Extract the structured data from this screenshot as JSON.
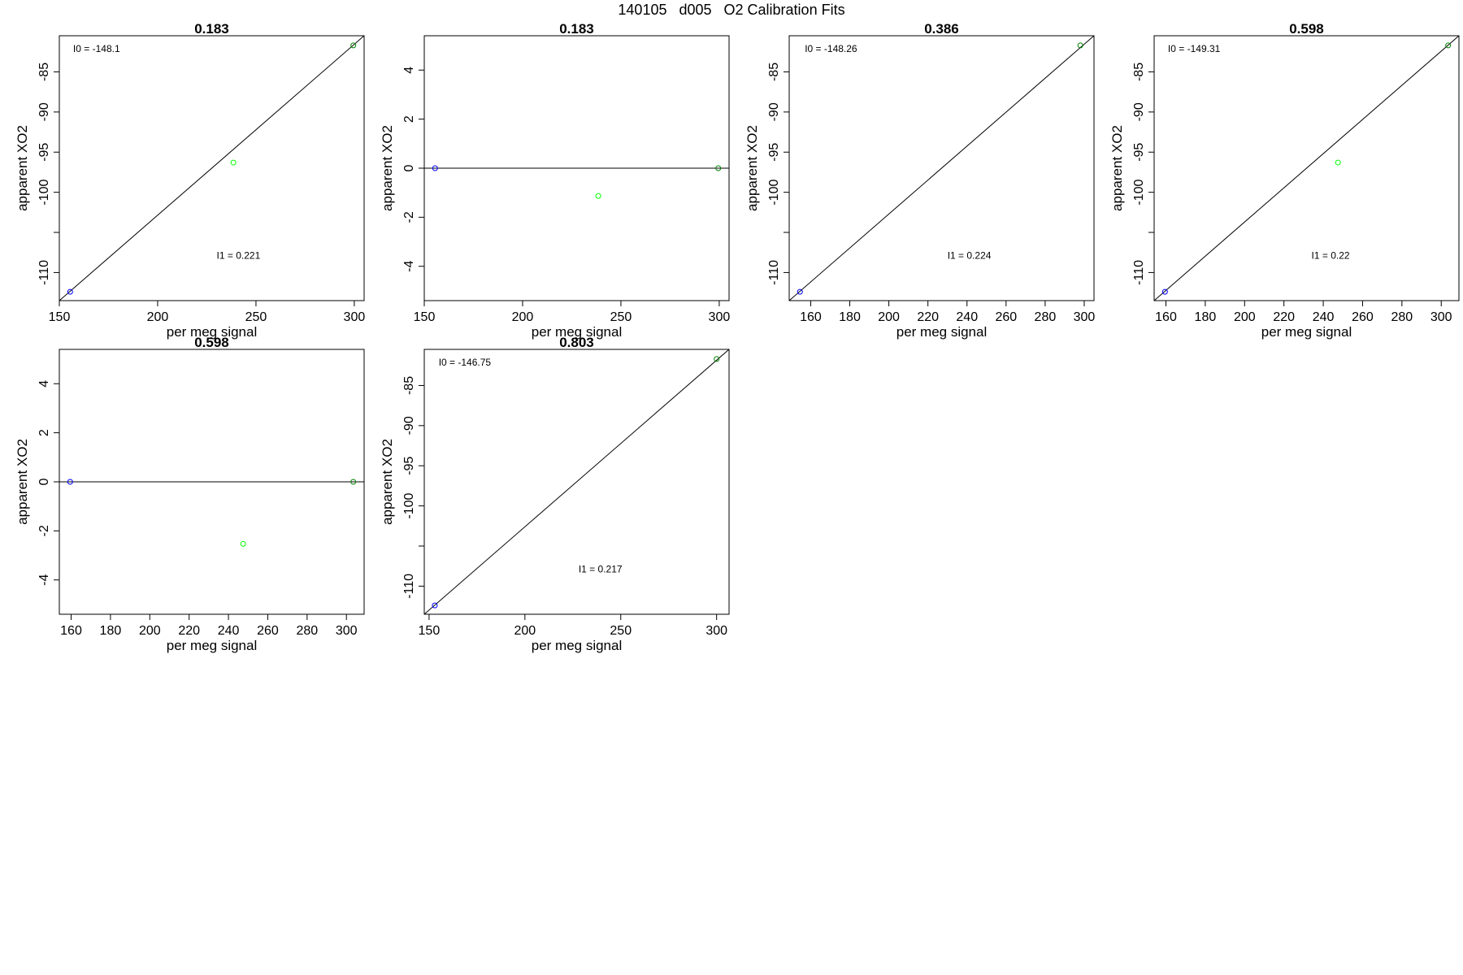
{
  "page": {
    "title": "140105   d005   O2 Calibration Fits"
  },
  "chart_data": [
    {
      "type": "scatter",
      "title": "0.183",
      "xlabel": "per meg signal",
      "ylabel": "apparent XO2",
      "xlim": [
        150,
        305
      ],
      "ylim": [
        -113.5,
        -80.5
      ],
      "xticks": [
        150,
        200,
        250,
        300
      ],
      "xtick_labels": [
        "150",
        "200",
        "250",
        "300"
      ],
      "yticks": [
        -85,
        -90,
        -95,
        -100,
        -105,
        -110
      ],
      "ytick_labels": [
        "-85",
        "-90",
        "-95",
        "-100",
        "",
        "-110"
      ],
      "points": [
        {
          "x": 155.5,
          "y": -112.4,
          "color": "#0000ff"
        },
        {
          "x": 238.5,
          "y": -96.3,
          "color": "#00ff00"
        },
        {
          "x": 299.5,
          "y": -81.7,
          "color": "#008000"
        }
      ],
      "fit_line": {
        "x1": 150,
        "y1": -113.5,
        "x2": 305,
        "y2": -80.5
      },
      "annotations": [
        {
          "text": "I0 =  -148.1",
          "x": 157,
          "y": -82.5
        },
        {
          "text": "I1 =  0.221",
          "x": 230,
          "y": -108.3
        }
      ]
    },
    {
      "type": "scatter",
      "title": "0.183",
      "xlabel": "per meg signal",
      "ylabel": "apparent XO2",
      "xlim": [
        150,
        305
      ],
      "ylim": [
        -5.4,
        5.4
      ],
      "xticks": [
        150,
        200,
        250,
        300
      ],
      "xtick_labels": [
        "150",
        "200",
        "250",
        "300"
      ],
      "yticks": [
        4,
        2,
        0,
        -2,
        -4
      ],
      "ytick_labels": [
        "4",
        "2",
        "0",
        "-2",
        "-4"
      ],
      "points": [
        {
          "x": 155.5,
          "y": 0,
          "color": "#0000ff"
        },
        {
          "x": 238.5,
          "y": -1.13,
          "color": "#00ff00"
        },
        {
          "x": 299.5,
          "y": 0,
          "color": "#008000"
        }
      ],
      "fit_line": {
        "x1": 150,
        "y1": 0,
        "x2": 305,
        "y2": 0
      },
      "annotations": []
    },
    {
      "type": "scatter",
      "title": "0.386",
      "xlabel": "per meg signal",
      "ylabel": "apparent XO2",
      "xlim": [
        149,
        305
      ],
      "ylim": [
        -113.5,
        -80.5
      ],
      "xticks": [
        160,
        180,
        200,
        220,
        240,
        260,
        280,
        300
      ],
      "xtick_labels": [
        "160",
        "180",
        "200",
        "220",
        "240",
        "260",
        "280",
        "300"
      ],
      "yticks": [
        -85,
        -90,
        -95,
        -100,
        -105,
        -110
      ],
      "ytick_labels": [
        "-85",
        "-90",
        "-95",
        "-100",
        "",
        "-110"
      ],
      "points": [
        {
          "x": 154.5,
          "y": -112.4,
          "color": "#0000ff"
        },
        {
          "x": 298,
          "y": -81.7,
          "color": "#008000"
        }
      ],
      "fit_line": {
        "x1": 149,
        "y1": -113.5,
        "x2": 305,
        "y2": -80.5
      },
      "annotations": [
        {
          "text": "I0 =  -148.26",
          "x": 157,
          "y": -82.5
        },
        {
          "text": "I1 =  0.224",
          "x": 230,
          "y": -108.3
        }
      ]
    },
    {
      "type": "scatter",
      "title": "0.598",
      "xlabel": "per meg signal",
      "ylabel": "apparent XO2",
      "xlim": [
        154,
        309
      ],
      "ylim": [
        -113.5,
        -80.5
      ],
      "xticks": [
        160,
        180,
        200,
        220,
        240,
        260,
        280,
        300
      ],
      "xtick_labels": [
        "160",
        "180",
        "200",
        "220",
        "240",
        "260",
        "280",
        "300"
      ],
      "yticks": [
        -85,
        -90,
        -95,
        -100,
        -105,
        -110
      ],
      "ytick_labels": [
        "-85",
        "-90",
        "-95",
        "-100",
        "",
        "-110"
      ],
      "points": [
        {
          "x": 159.5,
          "y": -112.4,
          "color": "#0000ff"
        },
        {
          "x": 247.5,
          "y": -96.3,
          "color": "#00ff00"
        },
        {
          "x": 303.5,
          "y": -81.7,
          "color": "#008000"
        }
      ],
      "fit_line": {
        "x1": 154,
        "y1": -113.5,
        "x2": 309,
        "y2": -80.5
      },
      "annotations": [
        {
          "text": "I0 =  -149.31",
          "x": 161,
          "y": -82.5
        },
        {
          "text": "I1 =  0.22",
          "x": 234,
          "y": -108.3
        }
      ]
    },
    {
      "type": "scatter",
      "title": "0.598",
      "xlabel": "per meg signal",
      "ylabel": "apparent XO2",
      "xlim": [
        154,
        309
      ],
      "ylim": [
        -5.4,
        5.4
      ],
      "xticks": [
        160,
        180,
        200,
        220,
        240,
        260,
        280,
        300
      ],
      "xtick_labels": [
        "160",
        "180",
        "200",
        "220",
        "240",
        "260",
        "280",
        "300"
      ],
      "yticks": [
        4,
        2,
        0,
        -2,
        -4
      ],
      "ytick_labels": [
        "4",
        "2",
        "0",
        "-2",
        "-4"
      ],
      "points": [
        {
          "x": 159.5,
          "y": 0,
          "color": "#0000ff"
        },
        {
          "x": 247.5,
          "y": -2.53,
          "color": "#00ff00"
        },
        {
          "x": 303.5,
          "y": 0,
          "color": "#008000"
        }
      ],
      "fit_line": {
        "x1": 154,
        "y1": 0,
        "x2": 309,
        "y2": 0
      },
      "annotations": []
    },
    {
      "type": "scatter",
      "title": "0.803",
      "xlabel": "per meg signal",
      "ylabel": "apparent XO2",
      "xlim": [
        147.5,
        306.5
      ],
      "ylim": [
        -113.5,
        -80.5
      ],
      "xticks": [
        150,
        200,
        250,
        300
      ],
      "xtick_labels": [
        "150",
        "200",
        "250",
        "300"
      ],
      "yticks": [
        -85,
        -90,
        -95,
        -100,
        -105,
        -110
      ],
      "ytick_labels": [
        "-85",
        "-90",
        "-95",
        "-100",
        "",
        "-110"
      ],
      "points": [
        {
          "x": 153,
          "y": -112.4,
          "color": "#0000ff"
        },
        {
          "x": 300,
          "y": -81.7,
          "color": "#008000"
        }
      ],
      "fit_line": {
        "x1": 147.5,
        "y1": -113.5,
        "x2": 306.5,
        "y2": -80.5
      },
      "annotations": [
        {
          "text": "I0 =  -146.75",
          "x": 155,
          "y": -82.5
        },
        {
          "text": "I1 =  0.217",
          "x": 228,
          "y": -108.3
        }
      ]
    }
  ]
}
